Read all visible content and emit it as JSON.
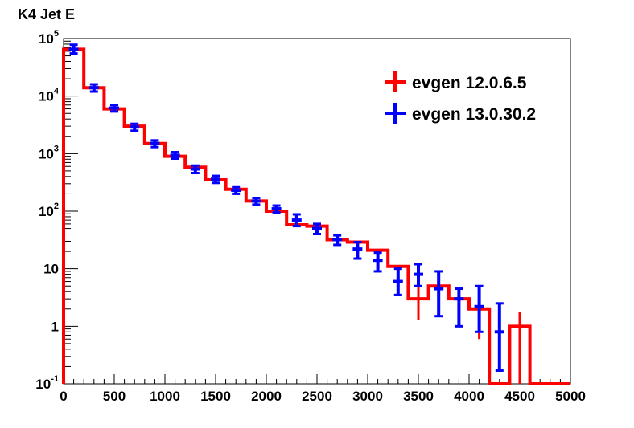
{
  "chart_data": {
    "type": "histogram",
    "title": "K4 Jet E",
    "xlabel": "",
    "ylabel": "",
    "xlim": [
      0,
      5000
    ],
    "ylim": [
      0.1,
      100000
    ],
    "y_scale": "log",
    "grid": false,
    "legend_position": "top-right",
    "x_ticks": [
      {
        "value": 0,
        "label": "0"
      },
      {
        "value": 500,
        "label": "500"
      },
      {
        "value": 1000,
        "label": "1000"
      },
      {
        "value": 1500,
        "label": "1500"
      },
      {
        "value": 2000,
        "label": "2000"
      },
      {
        "value": 2500,
        "label": "2500"
      },
      {
        "value": 3000,
        "label": "3000"
      },
      {
        "value": 3500,
        "label": "3500"
      },
      {
        "value": 4000,
        "label": "4000"
      },
      {
        "value": 4500,
        "label": "4500"
      },
      {
        "value": 5000,
        "label": "5000"
      }
    ],
    "y_ticks": [
      {
        "value": 100000,
        "base": "10",
        "exp": "5"
      },
      {
        "value": 10000,
        "base": "10",
        "exp": "4"
      },
      {
        "value": 1000,
        "base": "10",
        "exp": "3"
      },
      {
        "value": 100,
        "base": "10",
        "exp": "2"
      },
      {
        "value": 10,
        "base": "10",
        "exp": ""
      },
      {
        "value": 1,
        "base": "1",
        "exp": ""
      },
      {
        "value": 0.1,
        "base": "10",
        "exp": "-1"
      }
    ],
    "bin_edges": [
      0,
      200,
      400,
      600,
      800,
      1000,
      1200,
      1400,
      1600,
      1800,
      2000,
      2200,
      2400,
      2600,
      2800,
      3000,
      3200,
      3400,
      3600,
      3800,
      4000,
      4200,
      4400,
      4600,
      4800,
      5000
    ],
    "series": [
      {
        "name": "evgen 12.0.6.5",
        "color": "#ff0000",
        "style": "histogram",
        "values": [
          65000,
          14000,
          6000,
          3000,
          1500,
          900,
          580,
          350,
          240,
          150,
          100,
          58,
          55,
          32,
          29,
          21,
          11,
          3,
          5,
          3,
          2,
          0,
          1,
          0,
          0
        ],
        "errors": [
          [
            65000,
            65000
          ],
          [
            14000,
            14000
          ],
          [
            6000,
            6000
          ],
          [
            3000,
            3000
          ],
          [
            1500,
            1500
          ],
          [
            900,
            900
          ],
          [
            580,
            580
          ],
          [
            350,
            350
          ],
          [
            240,
            240
          ],
          [
            150,
            150
          ],
          [
            100,
            100
          ],
          [
            58,
            58
          ],
          [
            55,
            55
          ],
          [
            32,
            32
          ],
          [
            29,
            29
          ],
          [
            21,
            21
          ],
          [
            11,
            11
          ],
          [
            1.3,
            5.5
          ],
          [
            3.5,
            6.8
          ],
          [
            3,
            3
          ],
          [
            0.6,
            3.5
          ],
          [
            0,
            0
          ],
          [
            0.1,
            1.8
          ],
          [
            0,
            0
          ],
          [
            0,
            0
          ]
        ]
      },
      {
        "name": "evgen 13.0.30.2",
        "color": "#0000ff",
        "style": "points",
        "values": [
          65000,
          14000,
          6200,
          2900,
          1500,
          940,
          540,
          360,
          230,
          150,
          110,
          70,
          50,
          32,
          22,
          14,
          6,
          8,
          4.5,
          3,
          2.2,
          0.8
        ],
        "errors": [
          [
            55000,
            78000
          ],
          [
            12000,
            16000
          ],
          [
            5400,
            7000
          ],
          [
            2500,
            3300
          ],
          [
            1300,
            1700
          ],
          [
            820,
            1060
          ],
          [
            460,
            620
          ],
          [
            310,
            410
          ],
          [
            200,
            260
          ],
          [
            130,
            170
          ],
          [
            95,
            125
          ],
          [
            55,
            88
          ],
          [
            40,
            60
          ],
          [
            26,
            38
          ],
          [
            15,
            29
          ],
          [
            9,
            19
          ],
          [
            3.5,
            10
          ],
          [
            5,
            12
          ],
          [
            1.5,
            9
          ],
          [
            1,
            4.5
          ],
          [
            0.8,
            5
          ],
          [
            0.17,
            2.5
          ]
        ]
      }
    ]
  }
}
